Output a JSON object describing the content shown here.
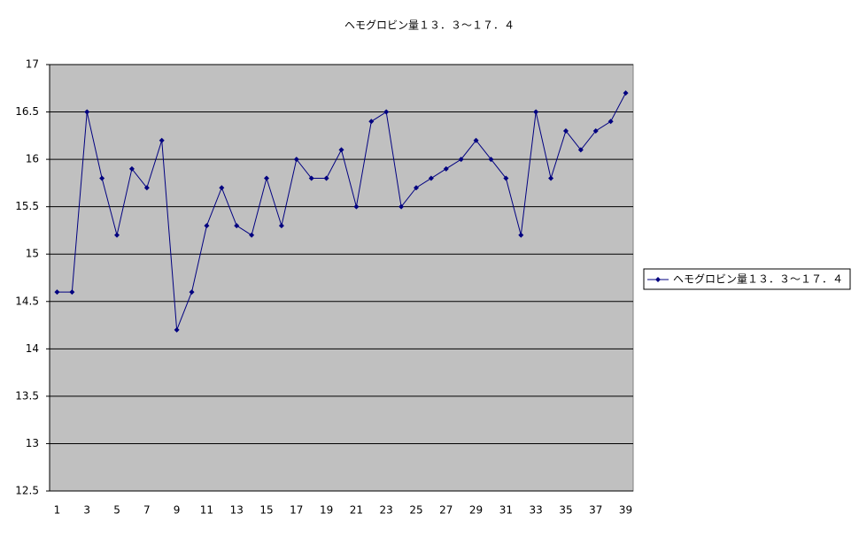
{
  "chart_data": {
    "type": "line",
    "title": "ヘモグロビン量１３．３～１７．４",
    "categories": [
      "1",
      null,
      "3",
      null,
      "5",
      null,
      "7",
      null,
      "9",
      null,
      "11",
      null,
      "13",
      null,
      "15",
      null,
      "17",
      null,
      "19",
      null,
      "21",
      null,
      "23",
      null,
      "25",
      null,
      "27",
      null,
      "29",
      null,
      "31",
      null,
      "33",
      null,
      "35",
      null,
      "37",
      null,
      "39"
    ],
    "series": [
      {
        "name": "ヘモグロビン量１３．３～１７．４",
        "color": "#000080",
        "values": [
          14.6,
          14.6,
          16.5,
          15.8,
          15.2,
          15.9,
          15.7,
          16.2,
          14.2,
          14.6,
          15.3,
          15.7,
          15.3,
          15.2,
          15.8,
          15.3,
          16.0,
          15.8,
          15.8,
          16.1,
          15.5,
          16.4,
          16.5,
          15.5,
          15.7,
          15.8,
          15.9,
          16.0,
          16.2,
          16.0,
          15.8,
          15.2,
          16.5,
          15.8,
          16.3,
          16.1,
          16.3,
          16.4,
          16.7
        ]
      }
    ],
    "ylim": [
      12.5,
      17
    ],
    "yticks": [
      12.5,
      13,
      13.5,
      14,
      14.5,
      15,
      15.5,
      16,
      16.5,
      17
    ],
    "grid": true,
    "legend": "right"
  }
}
